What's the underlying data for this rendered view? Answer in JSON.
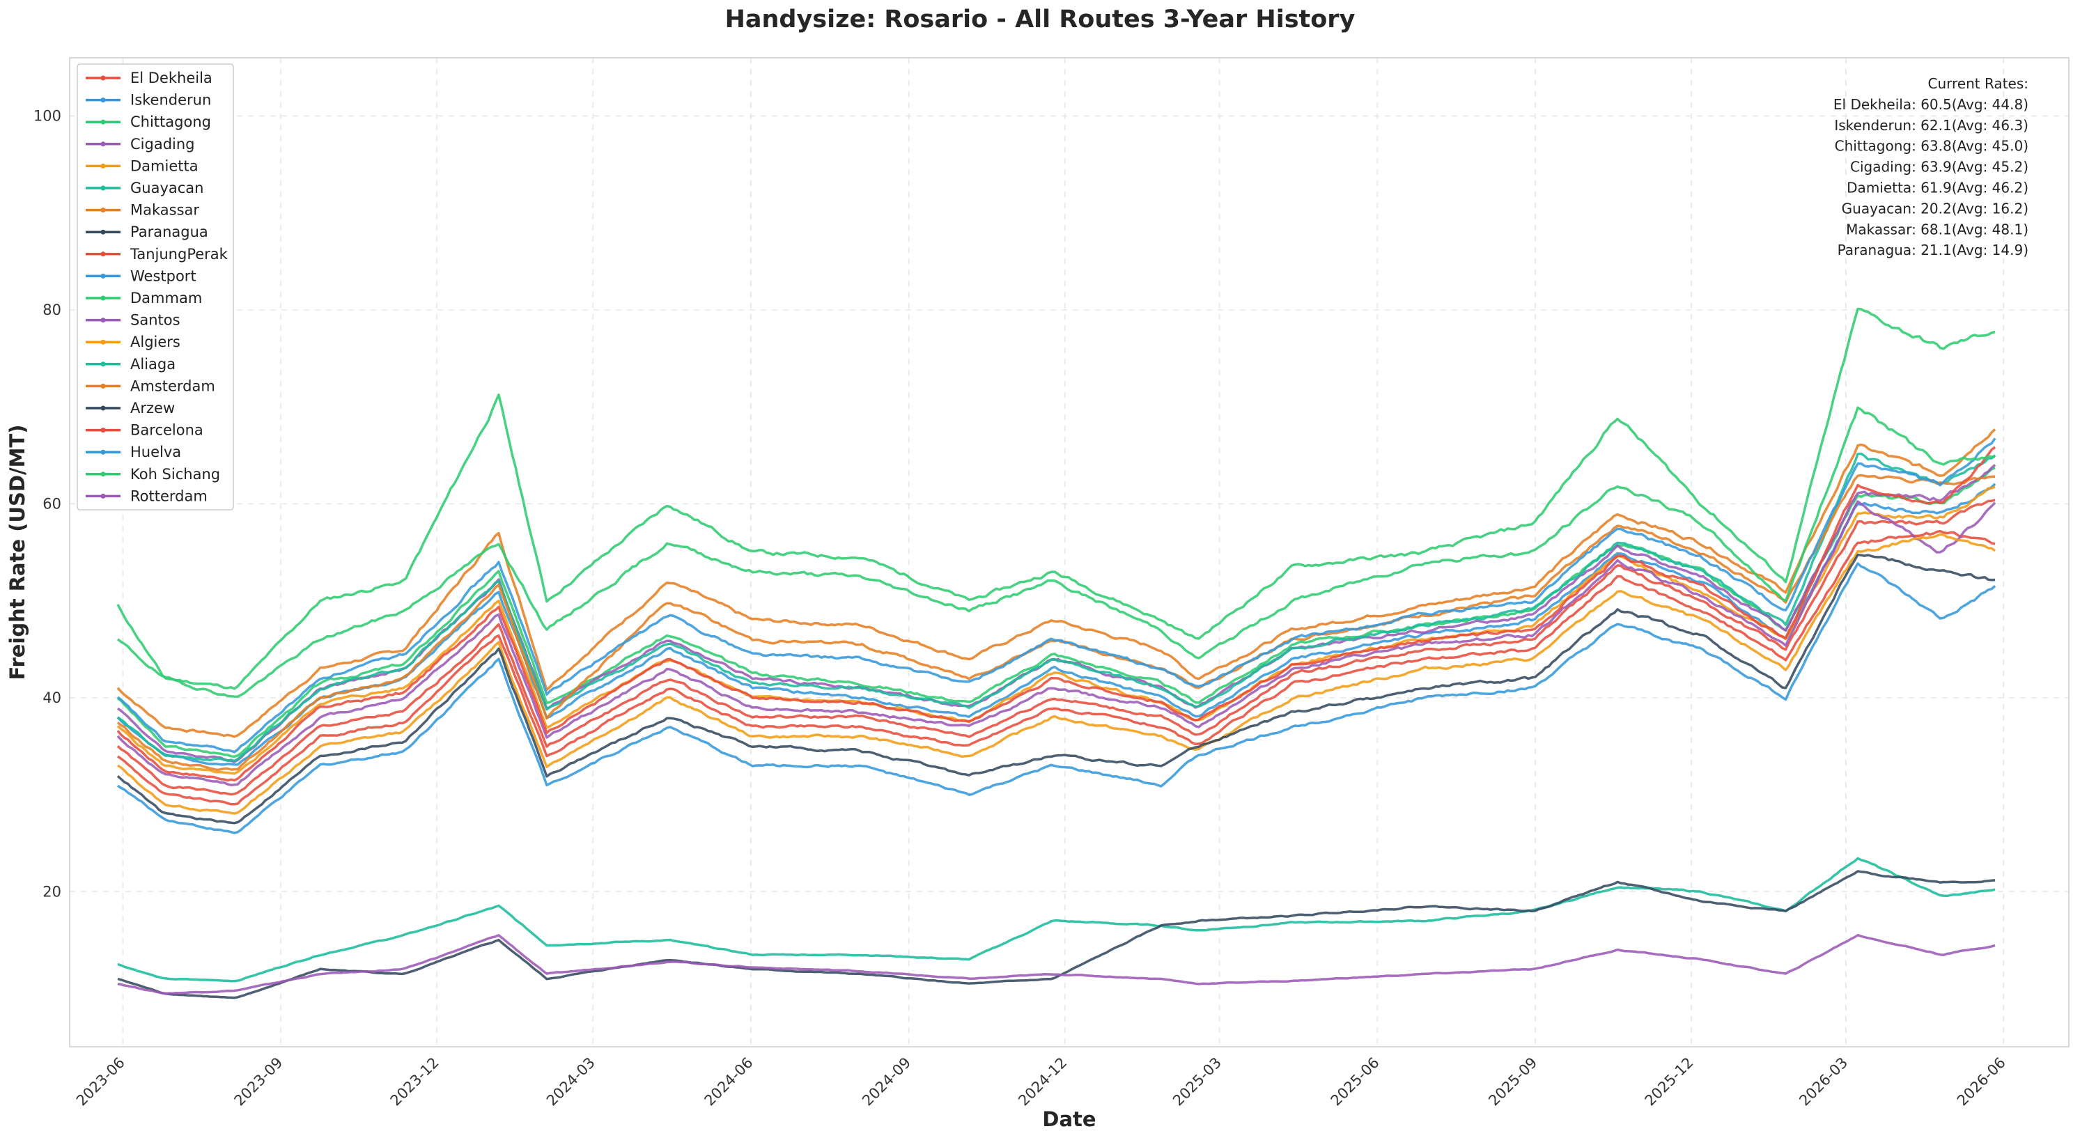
{
  "chart_data": {
    "type": "line",
    "title": "Handysize: Rosario - All Routes 3-Year History",
    "xlabel": "Date",
    "ylabel": "Freight Rate (USD/MT)",
    "ylim": [
      4,
      106
    ],
    "xlim": [
      "2023-05-01",
      "2026-07-09"
    ],
    "y_ticks": [
      20,
      40,
      60,
      80,
      100
    ],
    "x_ticks": [
      "2023-06-01",
      "2023-09-01",
      "2023-12-01",
      "2024-03-01",
      "2024-06-01",
      "2024-09-01",
      "2024-12-01",
      "2025-03-01",
      "2025-06-01",
      "2025-09-01",
      "2025-12-01",
      "2026-03-01",
      "2026-06-01"
    ],
    "x_tick_labels": [
      "2023-06",
      "2023-09",
      "2023-12",
      "2024-03",
      "2024-06",
      "2024-09",
      "2024-12",
      "2025-03",
      "2025-06",
      "2025-09",
      "2025-12",
      "2026-03",
      "2026-06"
    ],
    "grid": true,
    "legend_position": "top-left",
    "current_rates_header": "Current Rates:",
    "current_rates": [
      "El Dekheila: 60.5(Avg: 44.8)",
      "Iskenderun: 62.1(Avg: 46.3)",
      "Chittagong: 63.8(Avg: 45.0)",
      "Cigading: 63.9(Avg: 45.2)",
      "Damietta: 61.9(Avg: 46.2)",
      "Guayacan: 20.2(Avg: 16.2)",
      "Makassar: 68.1(Avg: 48.1)",
      "Paranagua: 21.1(Avg: 14.9)"
    ],
    "keyframe_dates": [
      "2023-05-29",
      "2023-06-25",
      "2023-08-06",
      "2023-09-24",
      "2023-11-12",
      "2024-01-06",
      "2024-02-03",
      "2024-04-14",
      "2024-06-02",
      "2024-08-04",
      "2024-10-06",
      "2024-11-24",
      "2025-01-26",
      "2025-02-16",
      "2025-04-13",
      "2025-06-29",
      "2025-08-31",
      "2025-10-19",
      "2025-12-07",
      "2026-01-25",
      "2026-03-08",
      "2026-04-26",
      "2026-05-28"
    ],
    "series": [
      {
        "name": "El Dekheila",
        "color": "#e74c3c",
        "values": [
          35.0,
          31.0,
          30.0,
          37.0,
          38.5,
          47.5,
          35.0,
          42.0,
          38.0,
          38.0,
          36.0,
          40.0,
          38.0,
          36.0,
          42.5,
          45.0,
          46.0,
          53.5,
          50.0,
          45.0,
          58.0,
          58.0,
          60.5
        ]
      },
      {
        "name": "Iskenderun",
        "color": "#3498db",
        "values": [
          38.0,
          34.0,
          33.0,
          40.0,
          42.0,
          51.0,
          38.0,
          45.0,
          41.0,
          40.0,
          38.0,
          43.0,
          40.0,
          38.0,
          44.0,
          46.5,
          48.0,
          55.0,
          52.0,
          46.0,
          60.0,
          59.0,
          62.1
        ]
      },
      {
        "name": "Chittagong",
        "color": "#2ecc71",
        "values": [
          40.0,
          35.0,
          34.0,
          41.5,
          43.5,
          53.0,
          39.5,
          46.5,
          42.5,
          41.5,
          39.5,
          44.5,
          41.5,
          39.5,
          45.5,
          47.5,
          49.0,
          56.0,
          53.0,
          47.0,
          61.0,
          60.0,
          63.8
        ]
      },
      {
        "name": "Cigading",
        "color": "#9b59b6",
        "values": [
          39.0,
          34.5,
          33.5,
          41.0,
          43.0,
          52.0,
          39.0,
          46.0,
          42.0,
          41.0,
          39.0,
          44.0,
          41.0,
          39.0,
          45.0,
          47.0,
          48.5,
          55.5,
          52.5,
          47.0,
          61.0,
          60.5,
          63.9
        ]
      },
      {
        "name": "Damietta",
        "color": "#f39c12",
        "values": [
          37.0,
          33.0,
          32.0,
          39.5,
          41.0,
          50.0,
          37.0,
          44.0,
          40.0,
          39.5,
          37.5,
          42.5,
          39.5,
          37.5,
          43.5,
          46.0,
          47.5,
          54.5,
          51.0,
          46.0,
          59.0,
          58.5,
          61.9
        ]
      },
      {
        "name": "Guayacan",
        "color": "#1abc9c",
        "values": [
          12.5,
          11.0,
          10.8,
          13.5,
          15.5,
          18.5,
          14.5,
          15.0,
          13.5,
          13.5,
          13.0,
          17.0,
          16.5,
          16.0,
          16.8,
          17.0,
          18.0,
          20.5,
          20.0,
          18.0,
          23.5,
          19.5,
          20.2
        ]
      },
      {
        "name": "Makassar",
        "color": "#e67e22",
        "values": [
          41.0,
          37.0,
          36.0,
          43.0,
          45.0,
          57.0,
          41.0,
          52.0,
          48.0,
          47.5,
          44.0,
          48.0,
          45.0,
          42.0,
          47.0,
          49.5,
          51.5,
          59.0,
          56.0,
          51.0,
          66.0,
          63.0,
          68.1
        ]
      },
      {
        "name": "Paranagua",
        "color": "#34495e",
        "values": [
          11.0,
          9.5,
          9.0,
          12.0,
          11.5,
          15.0,
          11.0,
          13.0,
          12.0,
          11.5,
          10.5,
          11.0,
          16.5,
          17.0,
          17.5,
          18.5,
          18.0,
          21.0,
          19.0,
          18.0,
          22.0,
          21.0,
          21.1
        ]
      },
      {
        "name": "TanjungPerak",
        "color": "#e74c3c",
        "values": [
          34.0,
          30.0,
          29.0,
          36.0,
          37.5,
          46.5,
          34.0,
          41.0,
          37.0,
          37.0,
          35.0,
          39.0,
          37.0,
          35.0,
          41.5,
          44.0,
          45.0,
          52.5,
          49.0,
          44.0,
          56.0,
          57.0,
          56.0
        ]
      },
      {
        "name": "Westport",
        "color": "#3498db",
        "values": [
          31.0,
          27.5,
          26.0,
          33.0,
          34.5,
          44.0,
          31.0,
          37.0,
          33.0,
          33.0,
          30.0,
          33.0,
          31.0,
          34.0,
          37.0,
          40.0,
          41.0,
          47.5,
          45.0,
          40.0,
          54.0,
          48.0,
          51.5
        ]
      },
      {
        "name": "Dammam",
        "color": "#2ecc71",
        "values": [
          49.5,
          42.0,
          41.0,
          50.0,
          52.0,
          71.0,
          50.0,
          60.0,
          55.0,
          54.5,
          50.0,
          53.0,
          48.0,
          46.0,
          53.5,
          55.0,
          58.0,
          69.0,
          60.0,
          52.0,
          80.0,
          76.0,
          78.0
        ]
      },
      {
        "name": "Santos",
        "color": "#9b59b6",
        "values": [
          36.0,
          32.0,
          31.0,
          38.0,
          40.0,
          48.5,
          36.0,
          43.0,
          39.0,
          38.5,
          37.0,
          41.0,
          39.0,
          37.0,
          43.0,
          45.5,
          46.5,
          54.0,
          50.5,
          45.5,
          60.0,
          55.0,
          60.0
        ]
      },
      {
        "name": "Algiers",
        "color": "#f39c12",
        "values": [
          33.0,
          29.0,
          28.0,
          35.0,
          36.5,
          45.5,
          33.0,
          40.0,
          36.0,
          36.0,
          34.0,
          38.0,
          36.0,
          34.5,
          40.0,
          43.0,
          44.0,
          51.0,
          48.0,
          43.0,
          55.0,
          57.0,
          55.0
        ]
      },
      {
        "name": "Aliaga",
        "color": "#1abc9c",
        "values": [
          38.0,
          34.0,
          33.5,
          41.0,
          43.0,
          52.0,
          39.0,
          45.5,
          41.5,
          41.0,
          39.0,
          44.0,
          41.0,
          39.0,
          45.0,
          47.5,
          49.0,
          56.0,
          53.0,
          47.5,
          65.0,
          62.0,
          65.0
        ]
      },
      {
        "name": "Amsterdam",
        "color": "#e67e22",
        "values": [
          37.5,
          33.5,
          32.5,
          40.0,
          42.0,
          51.5,
          38.0,
          50.0,
          46.0,
          45.5,
          42.0,
          46.0,
          43.0,
          41.0,
          46.0,
          48.5,
          50.5,
          58.0,
          55.0,
          50.0,
          63.0,
          62.0,
          63.0
        ]
      },
      {
        "name": "Arzew",
        "color": "#34495e",
        "values": [
          32.0,
          28.0,
          27.0,
          34.0,
          35.5,
          45.0,
          32.0,
          38.0,
          35.0,
          34.5,
          32.0,
          34.0,
          33.0,
          35.0,
          38.5,
          41.0,
          42.0,
          49.0,
          46.5,
          41.0,
          55.0,
          53.0,
          52.0
        ]
      },
      {
        "name": "Barcelona",
        "color": "#e74c3c",
        "values": [
          36.5,
          32.5,
          31.5,
          39.0,
          40.5,
          49.5,
          36.5,
          44.0,
          40.0,
          39.5,
          37.5,
          42.0,
          39.5,
          37.5,
          43.5,
          46.0,
          47.0,
          54.5,
          51.5,
          46.0,
          62.0,
          60.0,
          66.0
        ]
      },
      {
        "name": "Huelva",
        "color": "#3498db",
        "values": [
          40.0,
          35.5,
          34.5,
          42.0,
          44.5,
          54.0,
          40.5,
          48.5,
          44.5,
          44.0,
          41.5,
          46.0,
          43.0,
          41.0,
          46.0,
          48.5,
          50.0,
          57.5,
          54.5,
          49.0,
          64.0,
          62.0,
          67.0
        ]
      },
      {
        "name": "Koh Sichang",
        "color": "#2ecc71",
        "values": [
          46.0,
          42.0,
          40.0,
          46.0,
          49.0,
          56.0,
          47.0,
          56.0,
          53.0,
          52.5,
          49.0,
          52.0,
          47.0,
          44.0,
          50.0,
          54.0,
          55.0,
          62.0,
          58.0,
          50.0,
          70.0,
          64.0,
          65.0
        ]
      },
      {
        "name": "Rotterdam",
        "color": "#9b59b6",
        "values": [
          10.5,
          9.5,
          9.8,
          11.5,
          12.0,
          15.5,
          11.5,
          12.8,
          12.2,
          11.8,
          11.0,
          11.5,
          11.0,
          10.5,
          10.8,
          11.5,
          12.0,
          14.0,
          13.0,
          11.5,
          15.5,
          13.5,
          14.5
        ]
      }
    ]
  }
}
